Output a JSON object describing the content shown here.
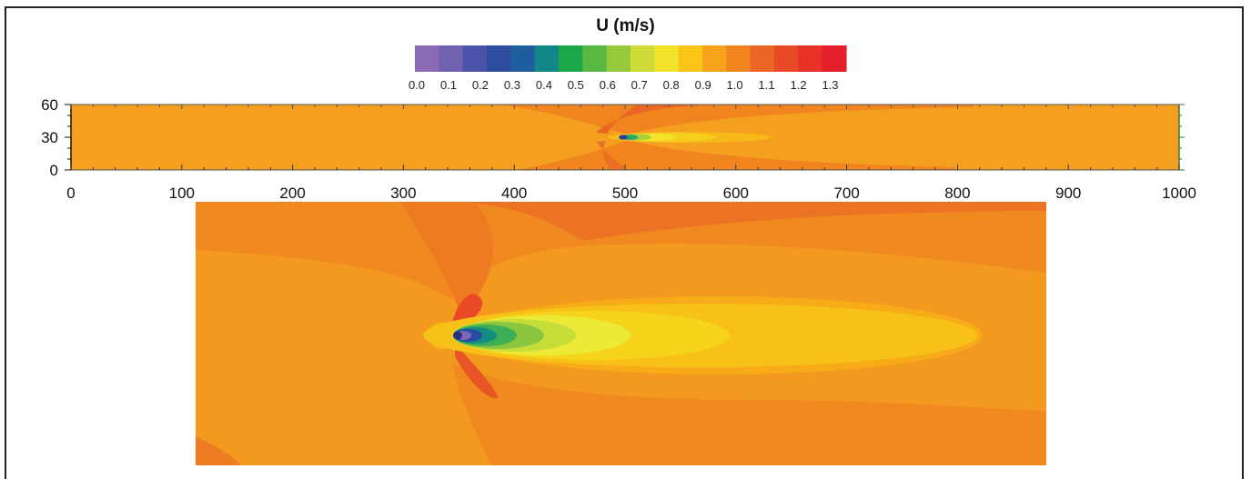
{
  "chart_data": [
    {
      "type": "heatmap",
      "title": "U (m/s)",
      "colorbar": {
        "ticks": [
          "0.0",
          "0.1",
          "0.2",
          "0.3",
          "0.4",
          "0.5",
          "0.6",
          "0.7",
          "0.8",
          "0.9",
          "1.0",
          "1.1",
          "1.2",
          "1.3"
        ],
        "range": [
          0.0,
          1.35
        ],
        "colors": [
          "#8a6bb3",
          "#6f63b0",
          "#4a53a8",
          "#2e4ca0",
          "#1e5e9e",
          "#12878a",
          "#1aa84a",
          "#58b843",
          "#97c93c",
          "#cfdb39",
          "#f2e32a",
          "#f9c517",
          "#f6a21b",
          "#f0851f",
          "#eb6524",
          "#e84a26",
          "#e53127",
          "#e41e2a"
        ]
      },
      "xlim": [
        0,
        1000
      ],
      "ylim": [
        0,
        60
      ],
      "x_ticks": [
        "0",
        "100",
        "200",
        "300",
        "400",
        "500",
        "600",
        "700",
        "800",
        "900",
        "1000"
      ],
      "y_ticks": [
        "0",
        "30",
        "60"
      ],
      "field": {
        "background_U": 1.0,
        "obstacle_x": 496,
        "obstacle_y": 30,
        "wake_min_U": 0.0,
        "wake_end_x": 640
      }
    },
    {
      "type": "heatmap",
      "view": "close-up of wake behind obstacle",
      "field": {
        "background_U": 1.0,
        "wake_min_U": 0.0,
        "wake_contours_U": [
          0.1,
          0.3,
          0.5,
          0.7,
          0.8,
          0.85,
          0.9,
          0.95
        ],
        "acceleration_U": 1.1
      }
    }
  ]
}
